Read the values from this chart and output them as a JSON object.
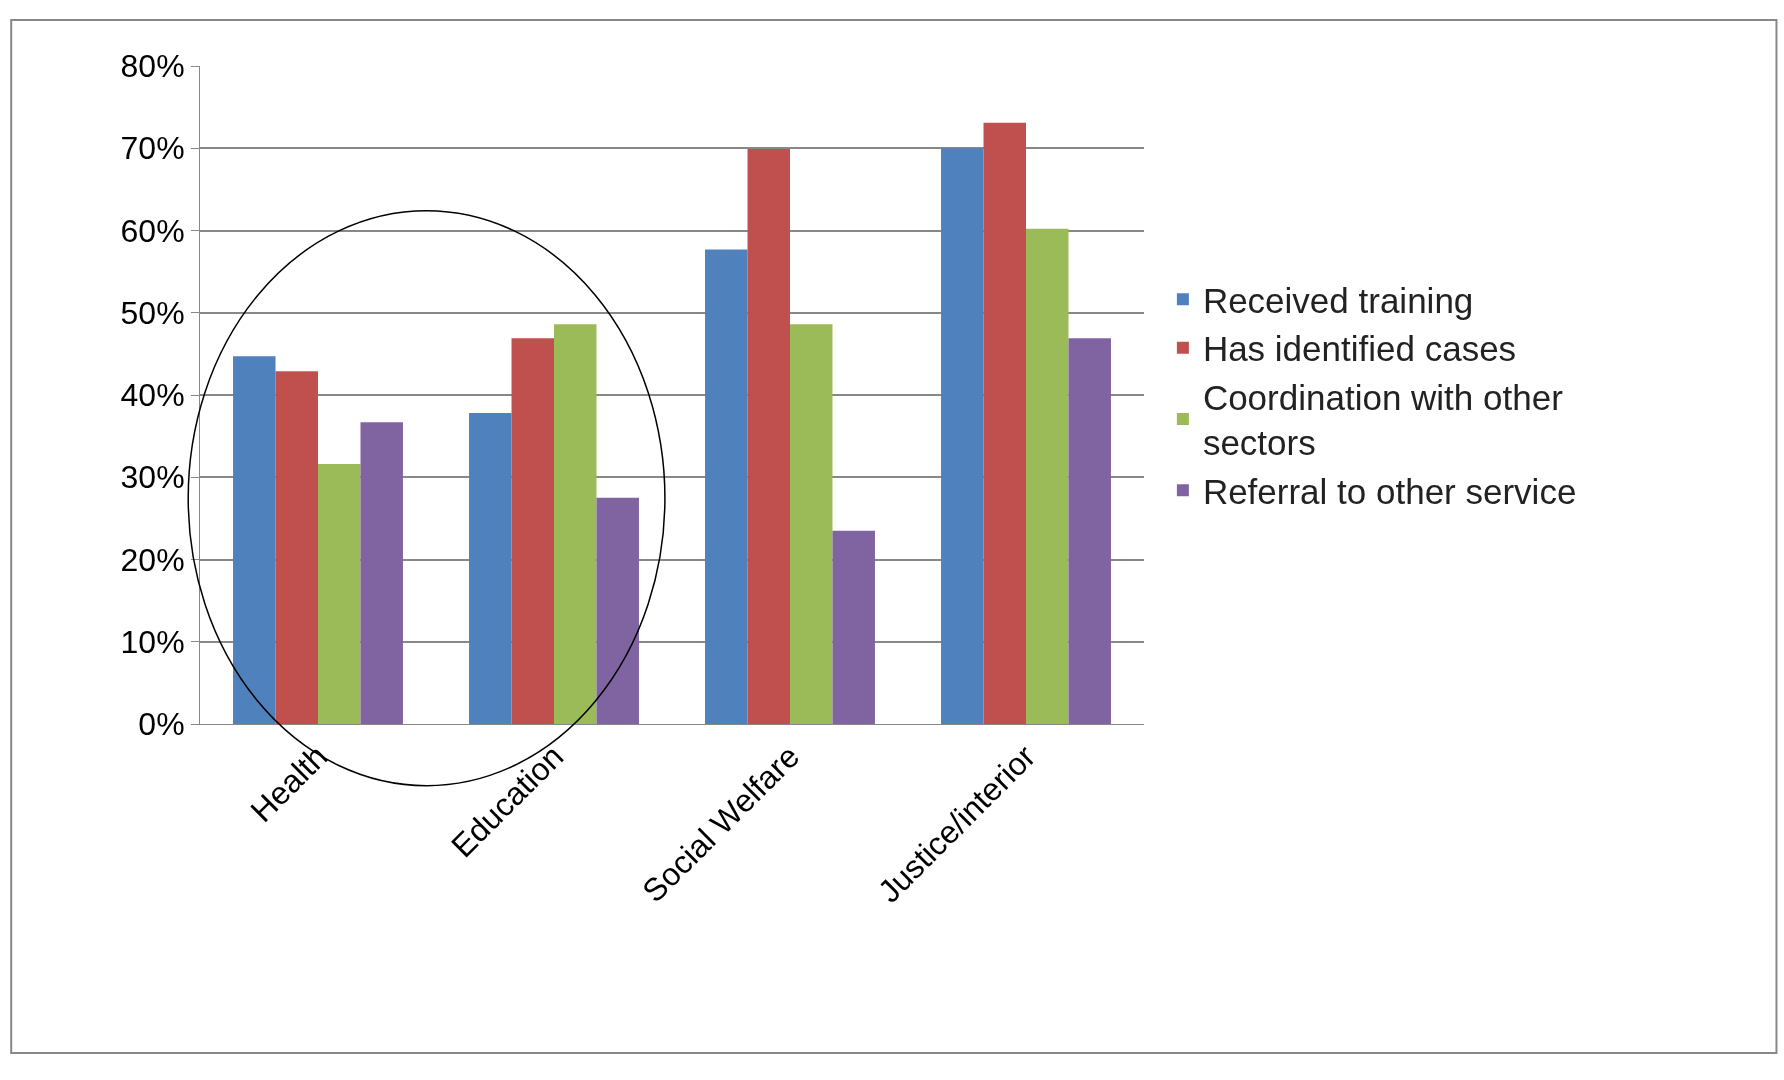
{
  "chart_data": {
    "type": "bar",
    "categories": [
      "Health",
      "Education",
      "Social Welfare",
      "Justice/interior"
    ],
    "series": [
      {
        "name": "Received training",
        "color": "#4f81bd",
        "values": [
          44.7,
          37.8,
          57.7,
          70
        ]
      },
      {
        "name": "Has identified cases",
        "color": "#c0504d",
        "values": [
          42.9,
          46.9,
          69.9,
          73.1
        ]
      },
      {
        "name": "Coordination with other sectors",
        "color": "#9bbb59",
        "values": [
          31.6,
          48.6,
          48.6,
          60.2
        ]
      },
      {
        "name": "Referral to other service",
        "color": "#8064a2",
        "values": [
          36.7,
          27.5,
          23.5,
          46.9
        ]
      }
    ],
    "ylim": [
      0,
      80
    ],
    "yticks": [
      {
        "value": 0,
        "label": "0%"
      },
      {
        "value": 10,
        "label": "10%"
      },
      {
        "value": 20,
        "label": "20%"
      },
      {
        "value": 30,
        "label": "30%"
      },
      {
        "value": 40,
        "label": "40%"
      },
      {
        "value": 50,
        "label": "50%"
      },
      {
        "value": 60,
        "label": "60%"
      },
      {
        "value": 70,
        "label": "70%"
      },
      {
        "value": 80,
        "label": "80%"
      }
    ],
    "grid": "y",
    "legend": "right"
  }
}
